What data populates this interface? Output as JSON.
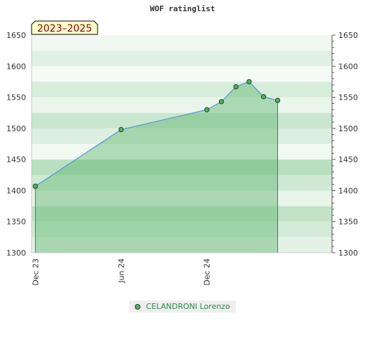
{
  "chart_data": {
    "type": "area",
    "title": "WOF ratinglist",
    "season_label": "2023–2025",
    "ylim": [
      1300,
      1650
    ],
    "yticks": [
      1300,
      1350,
      1400,
      1450,
      1500,
      1550,
      1600,
      1650
    ],
    "xlim": [
      "2023-11-23",
      "2025-08-25"
    ],
    "xticks": [
      {
        "label": "Dec 23",
        "date": "2023-12-01"
      },
      {
        "label": "Jun 24",
        "date": "2024-06-01"
      },
      {
        "label": "Dec 24",
        "date": "2024-12-01"
      }
    ],
    "series": [
      {
        "name": "CELANDRONI Lorenzo",
        "points": [
          {
            "date": "2023-12-01",
            "rating": 1407
          },
          {
            "date": "2024-06-01",
            "rating": 1498
          },
          {
            "date": "2024-12-01",
            "rating": 1530
          },
          {
            "date": "2025-01-01",
            "rating": 1543
          },
          {
            "date": "2025-02-01",
            "rating": 1567
          },
          {
            "date": "2025-03-01",
            "rating": 1575
          },
          {
            "date": "2025-04-01",
            "rating": 1551
          },
          {
            "date": "2025-05-01",
            "rating": 1545
          }
        ]
      }
    ],
    "colors": {
      "line": "#5b9bd5",
      "marker_fill": "#5aa86a",
      "marker_stroke": "#1d4d2a",
      "area": "#5fb56e",
      "legend_text": "#2e8b46"
    },
    "legend_position": "bottom-center"
  }
}
